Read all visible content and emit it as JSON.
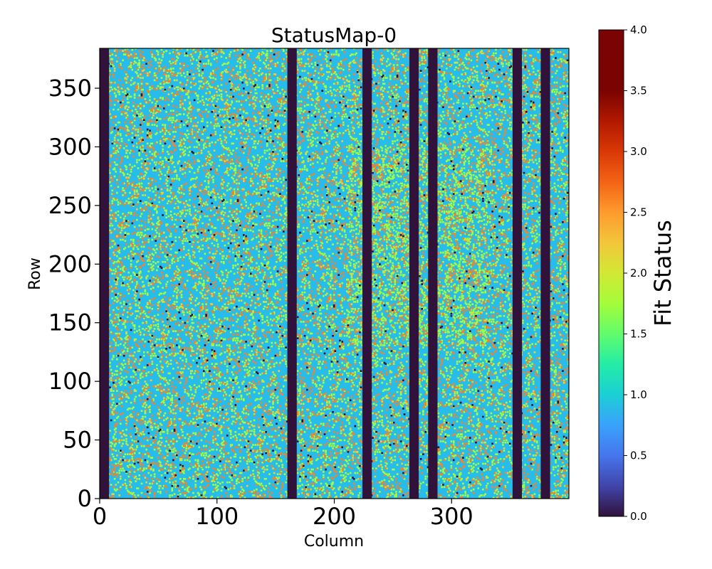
{
  "chart_data": {
    "type": "heatmap",
    "title": "StatusMap-0",
    "xlabel": "Column",
    "ylabel": "Row",
    "x_range": [
      0,
      400
    ],
    "y_range": [
      0,
      384
    ],
    "x_ticks": [
      0,
      100,
      200,
      300
    ],
    "y_ticks": [
      0,
      50,
      100,
      150,
      200,
      250,
      300,
      350
    ],
    "colorbar": {
      "label": "Fit Status",
      "range": [
        0.0,
        4.0
      ],
      "ticks": [
        "0.0",
        "0.5",
        "1.0",
        "1.5",
        "2.0",
        "2.5",
        "3.0",
        "3.5",
        "4.0"
      ],
      "colormap": "turbo"
    },
    "background_status": 1.0,
    "dead_columns": [
      [
        0,
        8
      ],
      [
        160,
        168
      ],
      [
        224,
        232
      ],
      [
        264,
        272
      ],
      [
        280,
        288
      ],
      [
        352,
        360
      ],
      [
        376,
        384
      ]
    ],
    "scatter_fractions": {
      "status_2": 0.06,
      "status_3": 0.05,
      "status_0": 0.004
    },
    "dense_region": {
      "columns": [
        210,
        330
      ],
      "rows": [
        130,
        300
      ]
    },
    "grid": false,
    "colors": {
      "status_0": "#30123b",
      "status_1": "#28bceb",
      "status_1_5": "#1ae4b6",
      "status_2": "#a4fc3c",
      "status_2_5": "#efcd3a",
      "status_3": "#fb8022",
      "dead": "#30123b"
    }
  }
}
